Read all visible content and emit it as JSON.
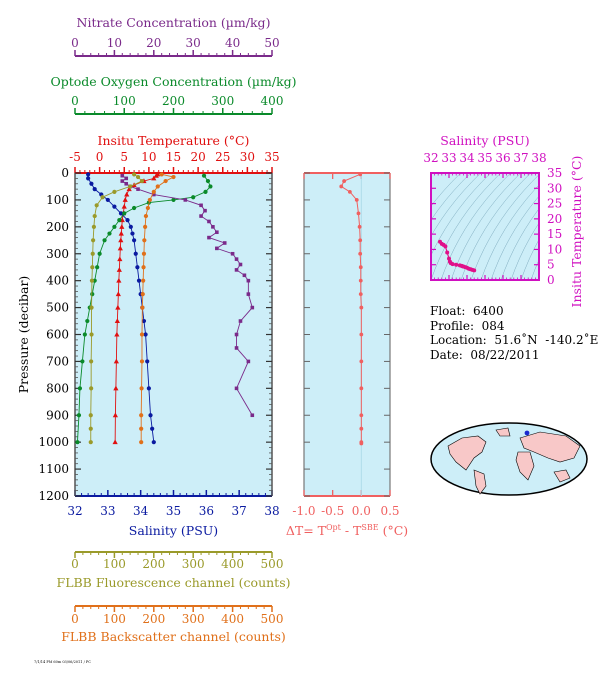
{
  "axes": {
    "nitrate": {
      "label": "Nitrate Concentration (µm/kg)",
      "color": "#7a2a8a",
      "range": [
        0,
        50
      ],
      "ticks": [
        "0",
        "10",
        "20",
        "30",
        "40",
        "50"
      ]
    },
    "oxygen": {
      "label": "Optode Oxygen Concentration (µm/kg)",
      "color": "#0a8a2a",
      "range": [
        0,
        400
      ],
      "ticks": [
        "0",
        "100",
        "200",
        "300",
        "400"
      ]
    },
    "temperature": {
      "label": "Insitu Temperature (°C)",
      "color": "#e01010",
      "range": [
        -5,
        35
      ],
      "ticks": [
        "-5",
        "0",
        "5",
        "10",
        "15",
        "20",
        "25",
        "30",
        "35"
      ]
    },
    "salinity": {
      "label": "Salinity (PSU)",
      "color": "#0a1aa0",
      "range": [
        32,
        38
      ],
      "ticks": [
        "32",
        "33",
        "34",
        "35",
        "36",
        "37",
        "38"
      ]
    },
    "pressure": {
      "label": "Pressure (decibar)",
      "color": "#000000",
      "range": [
        0,
        1200
      ],
      "ticks": [
        "0",
        "100",
        "200",
        "300",
        "400",
        "500",
        "600",
        "700",
        "800",
        "900",
        "1000",
        "1100",
        "1200"
      ]
    },
    "fluorescence": {
      "label": "FLBB Fluorescence channel (counts)",
      "color": "#9a9a2a",
      "range": [
        0,
        500
      ],
      "ticks": [
        "0",
        "100",
        "200",
        "300",
        "400",
        "500"
      ]
    },
    "backscatter": {
      "label": "FLBB Backscatter channel (counts)",
      "color": "#e0701a",
      "range": [
        0,
        500
      ],
      "ticks": [
        "0",
        "100",
        "200",
        "300",
        "400",
        "500"
      ]
    },
    "delta_t": {
      "label_prefix": "ΔT= T",
      "sup1": "Opt",
      "label_mid": " - T",
      "sup2": "SBE",
      "label_suffix": " (°C)",
      "color": "#f06060",
      "range": [
        -1.0,
        0.5
      ],
      "ticks": [
        "-1.0",
        "-0.5",
        "0.0",
        "0.5"
      ]
    },
    "ts_salinity": {
      "label": "Salinity (PSU)",
      "color": "#d010c0",
      "range": [
        32,
        38
      ],
      "ticks": [
        "32",
        "33",
        "34",
        "35",
        "36",
        "37",
        "38"
      ]
    },
    "ts_temperature": {
      "label": "Insitu Temperature (°C)",
      "color": "#d010c0",
      "range": [
        0,
        35
      ],
      "ticks": [
        "0",
        "5",
        "10",
        "15",
        "20",
        "25",
        "30",
        "35"
      ]
    }
  },
  "colors": {
    "panel_bg": "#cdeef8",
    "map_land": "#f8c8c8",
    "ts_points": "#e0108a",
    "float_marker": "#1a2ad0"
  },
  "info": {
    "float": "Float:  6400",
    "profile": "Profile:  084",
    "location": "Location:  51.6˚N  -140.2˚E",
    "date": "Date:  08/22/2011"
  },
  "footer_tag": "7/1/14 PM 60m 03/06/2011 / PC",
  "chart_data": [
    {
      "type": "line",
      "y_variable": "pressure",
      "ylim": [
        1200,
        0
      ],
      "series": [
        {
          "name": "Insitu Temperature (°C)",
          "color": "#e01010",
          "x": [
            11.8,
            11.5,
            11.0,
            9.0,
            7.0,
            6.0,
            5.5,
            5.2,
            5.0,
            4.8,
            4.6,
            4.5,
            4.4,
            4.3,
            4.2,
            4.1,
            4.0,
            3.9,
            3.8,
            3.7,
            3.6,
            3.5,
            3.4,
            3.3,
            3.2,
            3.15
          ],
          "y": [
            5,
            10,
            20,
            30,
            45,
            60,
            80,
            100,
            125,
            150,
            175,
            200,
            225,
            250,
            280,
            320,
            360,
            400,
            450,
            500,
            550,
            600,
            700,
            800,
            900,
            1000
          ]
        },
        {
          "name": "Salinity (PSU)",
          "color": "#0a1aa0",
          "x": [
            32.4,
            32.4,
            32.5,
            32.6,
            32.8,
            33.0,
            33.2,
            33.4,
            33.6,
            33.7,
            33.75,
            33.8,
            33.85,
            33.9,
            33.95,
            34.0,
            34.05,
            34.1,
            34.15,
            34.2,
            34.25,
            34.3,
            34.35,
            34.4
          ],
          "y": [
            5,
            20,
            40,
            60,
            80,
            100,
            125,
            150,
            175,
            200,
            225,
            250,
            300,
            350,
            400,
            450,
            500,
            550,
            600,
            700,
            800,
            900,
            950,
            1000
          ]
        },
        {
          "name": "Optode Oxygen Concentration (µm/kg)",
          "color": "#0a8a2a",
          "x": [
            262,
            270,
            275,
            265,
            240,
            200,
            150,
            120,
            100,
            90,
            80,
            70,
            60,
            50,
            45,
            40,
            35,
            30,
            25,
            20,
            15,
            10,
            8,
            5
          ],
          "y": [
            10,
            30,
            50,
            70,
            90,
            100,
            110,
            130,
            150,
            175,
            200,
            225,
            250,
            300,
            350,
            400,
            450,
            500,
            550,
            600,
            700,
            800,
            900,
            1000
          ]
        },
        {
          "name": "Nitrate Concentration (µm/kg)",
          "color": "#7a2a8a",
          "x": [
            12,
            13,
            12,
            13,
            14,
            16,
            20,
            28,
            32,
            33,
            32,
            34,
            35,
            36,
            34,
            38,
            36,
            40,
            41,
            42,
            41,
            43,
            44,
            44,
            45,
            42,
            41,
            41,
            44,
            41,
            45
          ],
          "y": [
            10,
            20,
            30,
            40,
            50,
            60,
            80,
            100,
            120,
            140,
            160,
            180,
            200,
            220,
            240,
            260,
            280,
            300,
            320,
            340,
            360,
            380,
            400,
            450,
            500,
            550,
            600,
            650,
            700,
            800,
            900
          ]
        },
        {
          "name": "FLBB Fluorescence channel (counts)",
          "color": "#9a9a2a",
          "x": [
            150,
            160,
            170,
            140,
            100,
            70,
            55,
            50,
            48,
            46,
            45,
            44,
            43,
            42,
            42,
            41,
            41,
            40,
            40,
            40
          ],
          "y": [
            5,
            15,
            30,
            50,
            70,
            90,
            120,
            160,
            200,
            250,
            300,
            350,
            400,
            500,
            600,
            700,
            800,
            900,
            950,
            1000
          ]
        },
        {
          "name": "FLBB Backscatter channel (counts)",
          "color": "#e0701a",
          "x": [
            220,
            250,
            230,
            210,
            200,
            190,
            185,
            180,
            178,
            176,
            175,
            174,
            173,
            172,
            171,
            170,
            170,
            169,
            168,
            168,
            168
          ],
          "y": [
            5,
            15,
            30,
            50,
            70,
            100,
            130,
            160,
            200,
            250,
            300,
            350,
            400,
            450,
            500,
            600,
            700,
            800,
            900,
            950,
            1000
          ]
        }
      ]
    },
    {
      "type": "line",
      "xlim": [
        -1.0,
        0.5
      ],
      "ylim": [
        1200,
        0
      ],
      "series": [
        {
          "name": "ΔT",
          "color": "#f06060",
          "x": [
            -0.02,
            -0.3,
            -0.35,
            -0.2,
            -0.08,
            -0.05,
            -0.03,
            -0.02,
            -0.02,
            -0.01,
            -0.01,
            -0.01,
            0.0,
            0.0,
            0.0,
            0.0,
            0.0,
            0.0,
            0.0,
            0.0
          ],
          "y": [
            5,
            30,
            50,
            70,
            100,
            150,
            200,
            250,
            300,
            350,
            400,
            450,
            500,
            600,
            700,
            800,
            900,
            950,
            1000,
            1005
          ]
        }
      ]
    },
    {
      "type": "scatter",
      "xlabel": "Salinity (PSU)",
      "ylabel": "Insitu Temperature (°C)",
      "xlim": [
        32,
        38
      ],
      "ylim": [
        0,
        35
      ],
      "series": [
        {
          "name": "T-S",
          "color": "#e0108a",
          "x": [
            34.4,
            34.3,
            34.2,
            34.1,
            34.0,
            33.9,
            33.8,
            33.75,
            33.7,
            33.6,
            33.4,
            33.2,
            33.1,
            33.05,
            33.0,
            32.9,
            32.8,
            32.7,
            32.6,
            32.5
          ],
          "y": [
            3.15,
            3.3,
            3.5,
            3.7,
            4.0,
            4.2,
            4.4,
            4.5,
            4.6,
            4.8,
            5.0,
            5.2,
            5.5,
            6.0,
            7.0,
            9.0,
            11.0,
            11.5,
            11.8,
            12.5
          ]
        }
      ]
    }
  ]
}
